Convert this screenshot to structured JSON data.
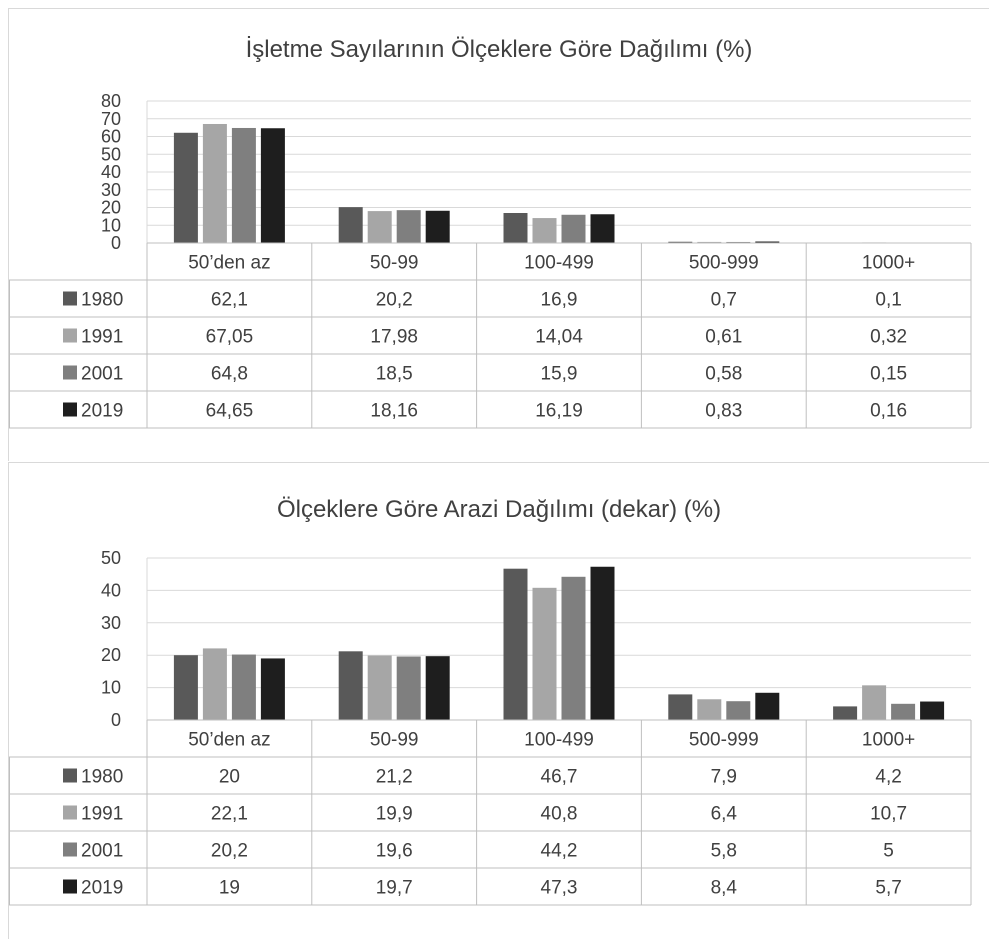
{
  "chart_data": [
    {
      "type": "bar",
      "title": "İşletme Sayılarının Ölçeklere Göre Dağılımı (%)",
      "categories": [
        "50’den az",
        "50-99",
        "100-499",
        "500-999",
        "1000+"
      ],
      "ylim": [
        0,
        80
      ],
      "yticks": [
        0,
        10,
        20,
        30,
        40,
        50,
        60,
        70,
        80
      ],
      "grid": true,
      "legend": "data-table",
      "series": [
        {
          "name": "1980",
          "color": "#595959",
          "values": [
            62.1,
            20.2,
            16.9,
            0.7,
            0.1
          ],
          "labels": [
            "62,1",
            "20,2",
            "16,9",
            "0,7",
            "0,1"
          ]
        },
        {
          "name": "1991",
          "color": "#a6a6a6",
          "values": [
            67.05,
            17.98,
            14.04,
            0.61,
            0.32
          ],
          "labels": [
            "67,05",
            "17,98",
            "14,04",
            "0,61",
            "0,32"
          ]
        },
        {
          "name": "2001",
          "color": "#7f7f7f",
          "values": [
            64.8,
            18.5,
            15.9,
            0.58,
            0.15
          ],
          "labels": [
            "64,8",
            "18,5",
            "15,9",
            "0,58",
            "0,15"
          ]
        },
        {
          "name": "2019",
          "color": "#1e1e1e",
          "values": [
            64.65,
            18.16,
            16.19,
            0.83,
            0.16
          ],
          "labels": [
            "64,65",
            "18,16",
            "16,19",
            "0,83",
            "0,16"
          ]
        }
      ]
    },
    {
      "type": "bar",
      "title": "Ölçeklere Göre Arazi Dağılımı (dekar) (%)",
      "categories": [
        "50’den az",
        "50-99",
        "100-499",
        "500-999",
        "1000+"
      ],
      "ylim": [
        0,
        50
      ],
      "yticks": [
        0,
        10,
        20,
        30,
        40,
        50
      ],
      "grid": true,
      "legend": "data-table",
      "series": [
        {
          "name": "1980",
          "color": "#595959",
          "values": [
            20,
            21.2,
            46.7,
            7.9,
            4.2
          ],
          "labels": [
            "20",
            "21,2",
            "46,7",
            "7,9",
            "4,2"
          ]
        },
        {
          "name": "1991",
          "color": "#a6a6a6",
          "values": [
            22.1,
            19.9,
            40.8,
            6.4,
            10.7
          ],
          "labels": [
            "22,1",
            "19,9",
            "40,8",
            "6,4",
            "10,7"
          ]
        },
        {
          "name": "2001",
          "color": "#7f7f7f",
          "values": [
            20.2,
            19.6,
            44.2,
            5.8,
            5
          ],
          "labels": [
            "20,2",
            "19,6",
            "44,2",
            "5,8",
            "5"
          ]
        },
        {
          "name": "2019",
          "color": "#1e1e1e",
          "values": [
            19,
            19.7,
            47.3,
            8.4,
            5.7
          ],
          "labels": [
            "19",
            "19,7",
            "47,3",
            "8,4",
            "5,7"
          ]
        }
      ]
    }
  ]
}
